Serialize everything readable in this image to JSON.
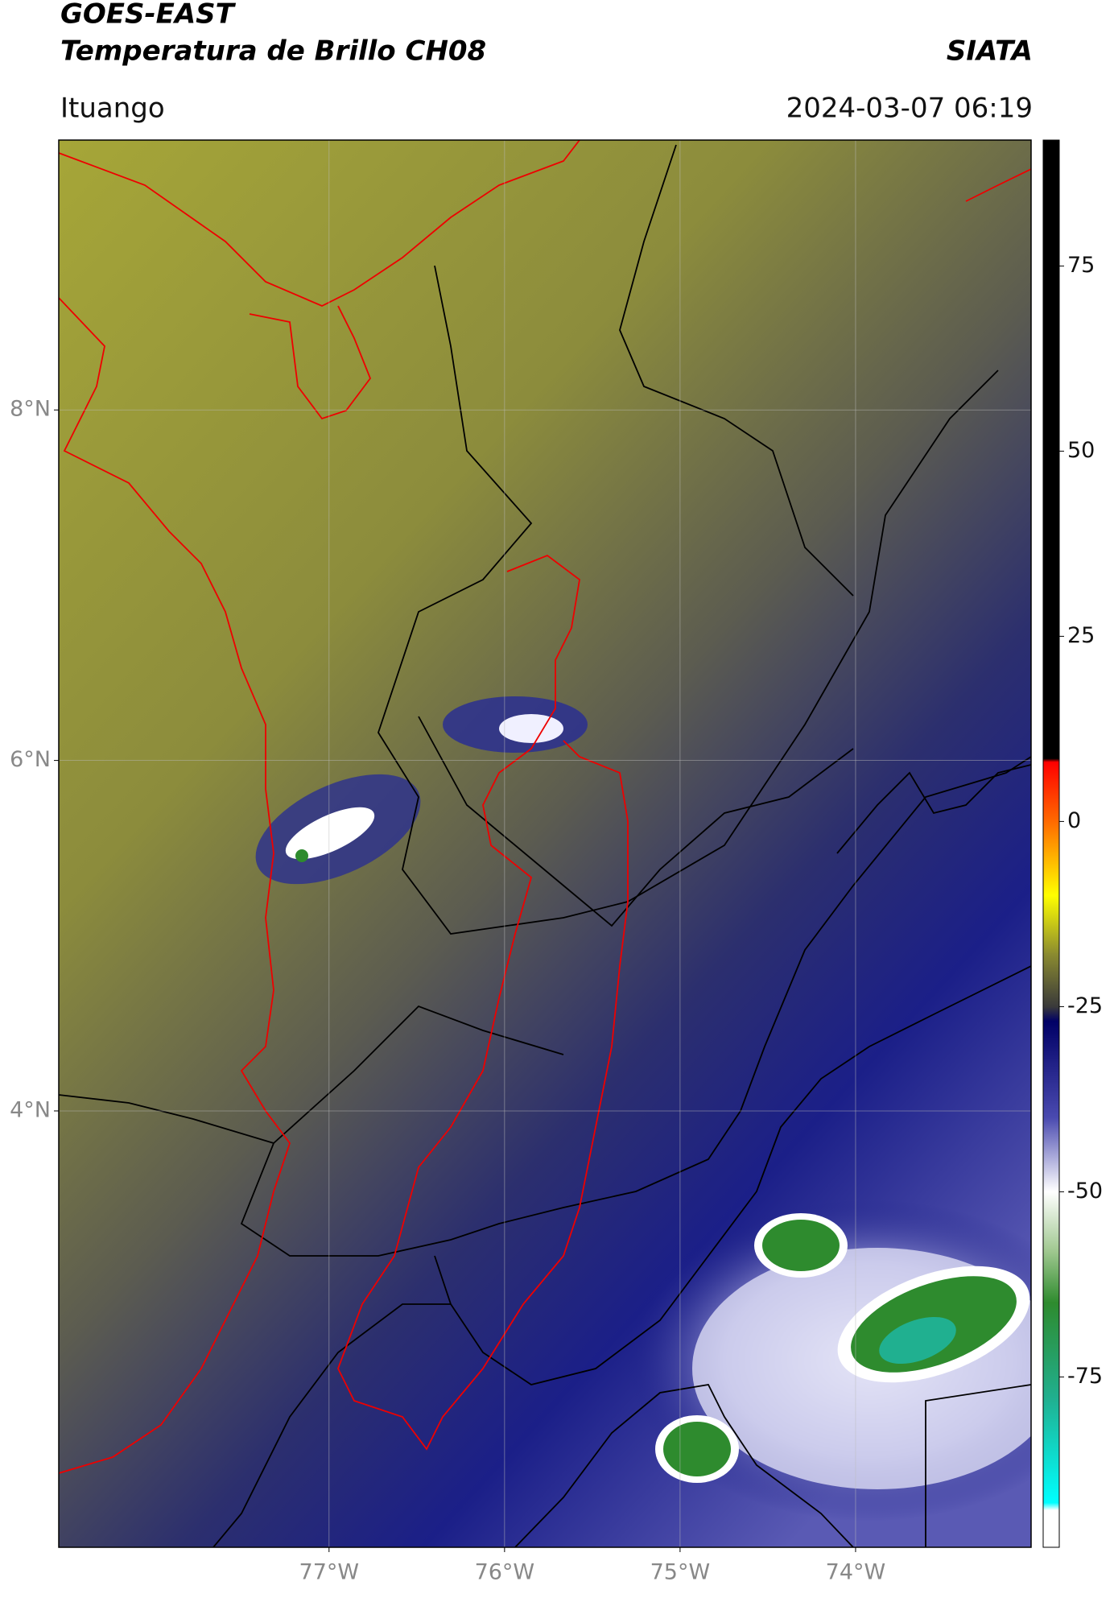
{
  "header": {
    "title": "GOES-EAST",
    "subtitle": "Temperatura de Brillo CH08",
    "source": "SIATA",
    "location": "Ituango",
    "datetime": "2024-03-07 06:19"
  },
  "chart_data": {
    "type": "map",
    "xlim": [
      -78.54,
      -73.0
    ],
    "ylim": [
      1.51,
      9.54
    ],
    "xticks": [
      {
        "value": -77,
        "label": "77°W"
      },
      {
        "value": -76,
        "label": "76°W"
      },
      {
        "value": -75,
        "label": "75°W"
      },
      {
        "value": -74,
        "label": "74°W"
      }
    ],
    "yticks": [
      {
        "value": 4,
        "label": "4°N"
      },
      {
        "value": 6,
        "label": "6°N"
      },
      {
        "value": 8,
        "label": "8°N"
      }
    ],
    "grid": true,
    "colorbar": {
      "clim": [
        -98,
        92
      ],
      "ticks": [
        -75,
        -50,
        -25,
        0,
        25,
        50,
        75
      ],
      "colormap": [
        {
          "value": 92,
          "color": "#000000"
        },
        {
          "value": 8.5,
          "color": "#000000"
        },
        {
          "value": 8,
          "color": "#ff0000"
        },
        {
          "value": 0,
          "color": "#ff6a00"
        },
        {
          "value": -10,
          "color": "#ffff00"
        },
        {
          "value": -18,
          "color": "#8a8a30"
        },
        {
          "value": -25,
          "color": "#3a3a3a"
        },
        {
          "value": -27,
          "color": "#000066"
        },
        {
          "value": -40,
          "color": "#4a4ab0"
        },
        {
          "value": -50,
          "color": "#ffffff"
        },
        {
          "value": -58,
          "color": "#a0c890"
        },
        {
          "value": -65,
          "color": "#2e8b2e"
        },
        {
          "value": -78,
          "color": "#20b090"
        },
        {
          "value": -92,
          "color": "#00ffff"
        },
        {
          "value": -93,
          "color": "#ffffff"
        },
        {
          "value": -98,
          "color": "#ffffff"
        }
      ]
    }
  }
}
